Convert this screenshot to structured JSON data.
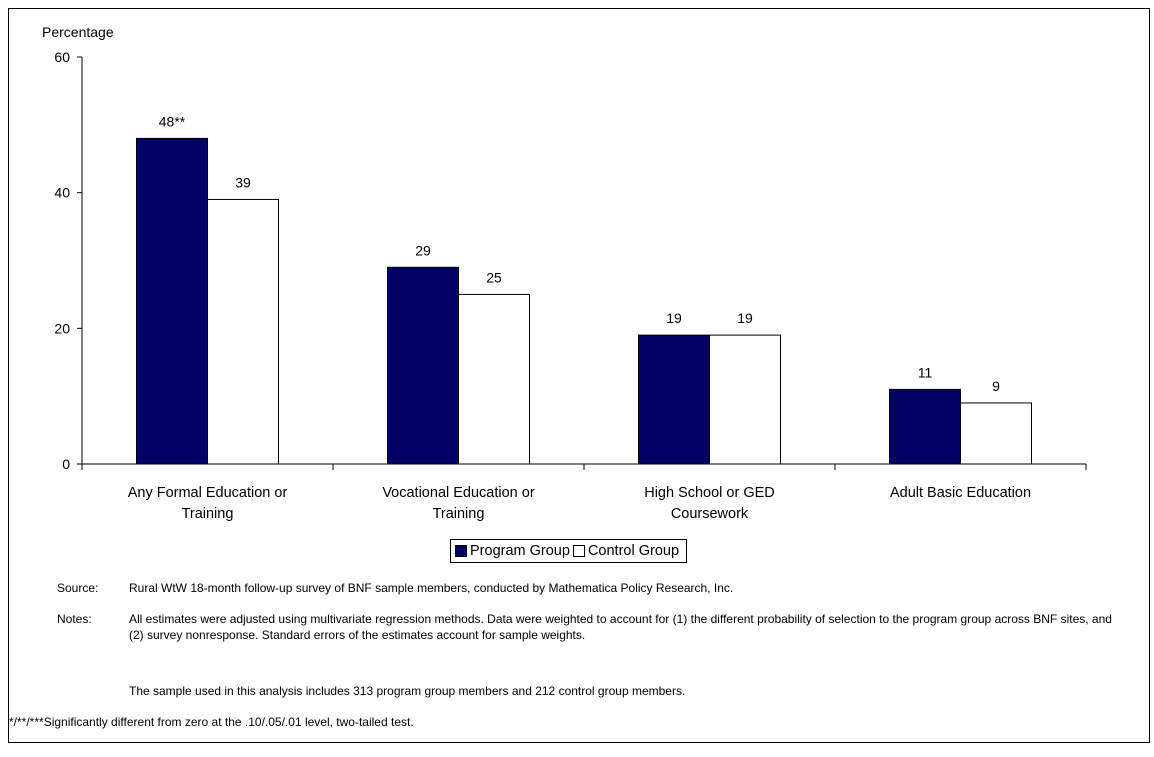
{
  "chart_data": {
    "type": "bar",
    "ylabel": "Percentage",
    "ylim": [
      0,
      60
    ],
    "yticks": [
      0,
      20,
      40,
      60
    ],
    "categories": [
      [
        "Any Formal Education or",
        "Training"
      ],
      [
        "Vocational Education or",
        "Training"
      ],
      [
        "High School or GED",
        "Coursework"
      ],
      [
        "Adult Basic Education"
      ]
    ],
    "series": [
      {
        "name": "Program Group",
        "color": "#000066",
        "values": [
          48,
          29,
          19,
          11
        ],
        "labels": [
          "48**",
          "29",
          "19",
          "11"
        ]
      },
      {
        "name": "Control Group",
        "color": "#ffffff",
        "values": [
          39,
          25,
          19,
          9
        ],
        "labels": [
          "39",
          "25",
          "19",
          "9"
        ]
      }
    ],
    "grid": false,
    "legend_position": "bottom-center"
  },
  "footnotes": {
    "source_label": "Source:",
    "source_text": "Rural WtW 18-month follow-up survey of BNF sample members, conducted by Mathematica Policy Research, Inc.",
    "notes_label": "Notes:",
    "notes_text": "All estimates were adjusted using multivariate regression methods.  Data were weighted to account for (1) the different probability of selection to the program group across BNF sites, and (2) survey nonresponse.  Standard errors of the estimates account for sample weights.",
    "sample_text": "The sample used in this analysis includes 313 program group members and 212 control group members.",
    "significance_text": "*/**/***Significantly different from zero at the .10/.05/.01 level, two-tailed test."
  }
}
